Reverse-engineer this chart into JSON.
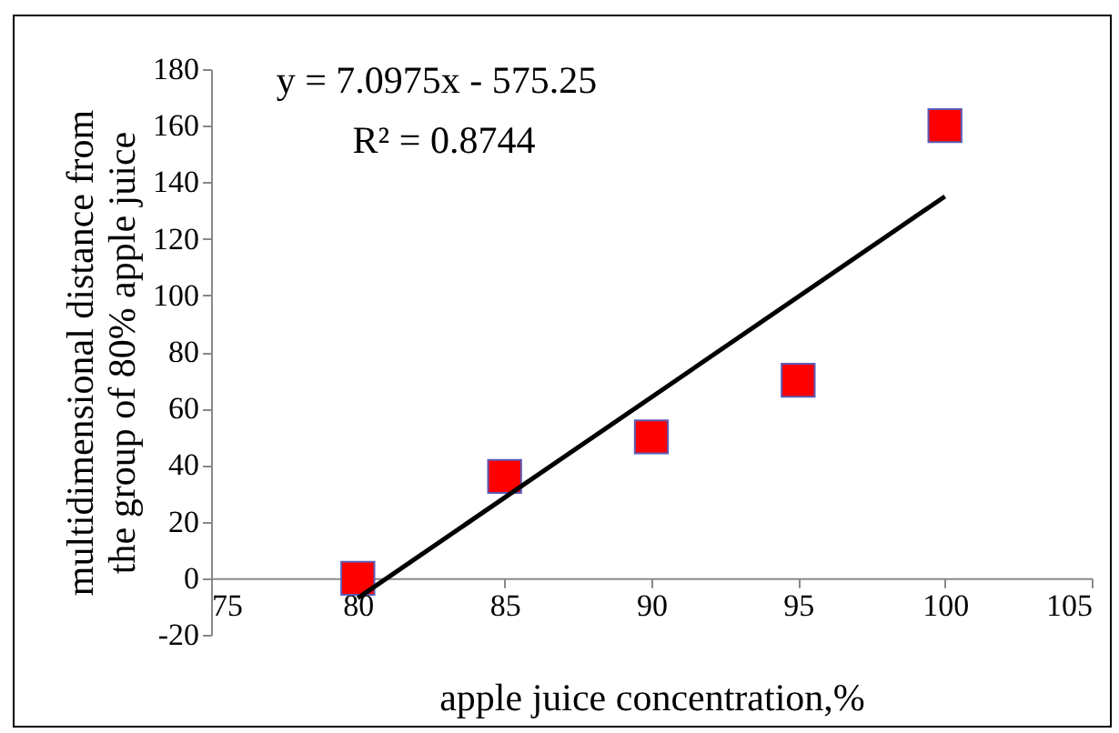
{
  "chart_data": {
    "type": "scatter",
    "xlabel": "apple juice concentration,%",
    "ylabel": "multidimensional distance from the group of 80% apple juice",
    "x": [
      80,
      85,
      90,
      95,
      100
    ],
    "series": [
      {
        "color": "#ff0000",
        "values": [
          0,
          36,
          50,
          70,
          160
        ],
        "marker": "square"
      },
      {
        "type": "line",
        "color": "#000000",
        "x": [
          80,
          100
        ],
        "values": [
          -7,
          135
        ],
        "marker": "none"
      }
    ],
    "xlim": [
      75,
      105
    ],
    "xticks": [
      75,
      80,
      85,
      90,
      95,
      100,
      105
    ],
    "ylim": [
      -20,
      180
    ],
    "yticks": [
      -20,
      0,
      20,
      40,
      60,
      80,
      100,
      120,
      140,
      160,
      180
    ],
    "annotations": [
      "y = 7.0975x - 575.25",
      "R² = 0.8744"
    ]
  }
}
